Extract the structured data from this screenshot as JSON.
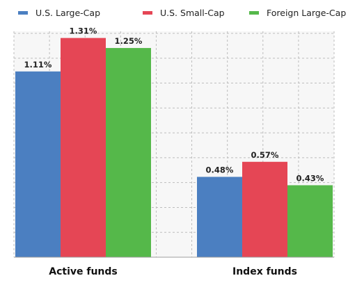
{
  "chart_data": {
    "type": "bar",
    "categories": [
      "Active funds",
      "Index funds"
    ],
    "series": [
      {
        "name": "U.S. Large-Cap",
        "color": "#4b7fc1",
        "values": [
          1.11,
          0.48
        ],
        "labels": [
          "1.11%",
          "0.48%"
        ]
      },
      {
        "name": "U.S. Small-Cap",
        "color": "#e54655",
        "values": [
          1.31,
          0.57
        ],
        "labels": [
          "1.31%",
          "0.57%"
        ]
      },
      {
        "name": "Foreign Large-Cap",
        "color": "#55b84a",
        "values": [
          1.25,
          0.43
        ],
        "labels": [
          "1.25%",
          "0.43%"
        ]
      }
    ],
    "ylim": [
      0,
      1.35
    ],
    "grid": true,
    "legend_position": "top"
  }
}
